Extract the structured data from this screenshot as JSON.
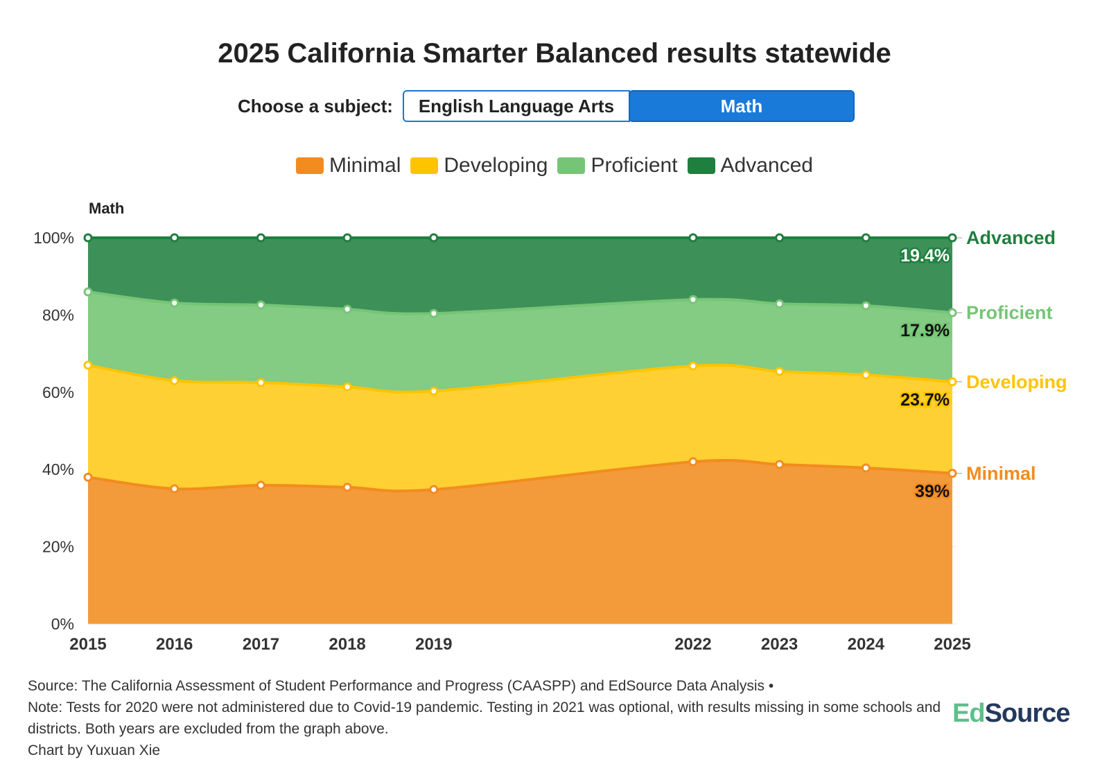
{
  "title": "2025 California Smarter Balanced results statewide",
  "chooser": {
    "label": "Choose a subject:",
    "options": [
      "English Language Arts",
      "Math"
    ],
    "selected": "Math"
  },
  "footer": {
    "source": "Source: The California Assessment of Student Performance and Progress (CAASPP) and EdSource Data Analysis •",
    "note": "Note: Tests for 2020 were not administered due to Covid-19 pandemic. Testing in 2021 was optional, with results missing in some schools and districts. Both years are excluded from the graph above.",
    "credit": "Chart by Yuxuan Xie"
  },
  "logo": {
    "part1": "Ed",
    "part2": "Source"
  },
  "chart_data": {
    "type": "area",
    "stacked": true,
    "subtitle": "Math",
    "x": [
      2015,
      2016,
      2017,
      2018,
      2019,
      2022,
      2023,
      2024,
      2025
    ],
    "x_tick_labels": [
      "2015",
      "2016",
      "2017",
      "2018",
      "2019",
      "2022",
      "2023",
      "2024",
      "2025"
    ],
    "y_ticks": [
      "0%",
      "20%",
      "40%",
      "60%",
      "80%",
      "100%"
    ],
    "ylim": [
      0,
      100
    ],
    "legend_position": "top-center",
    "series": [
      {
        "name": "Minimal",
        "color": "#f39a3b",
        "line": "#f28c1e",
        "values": [
          38.0,
          35.0,
          35.9,
          35.4,
          34.8,
          42.0,
          41.3,
          40.4,
          39.0
        ],
        "end_label": "39%"
      },
      {
        "name": "Developing",
        "color": "#ffd033",
        "line": "#ffc400",
        "values": [
          29.0,
          28.0,
          26.6,
          26.0,
          25.5,
          24.8,
          24.1,
          24.1,
          23.7
        ],
        "end_label": "23.7%"
      },
      {
        "name": "Proficient",
        "color": "#84cb84",
        "line": "#76c576",
        "values": [
          19.0,
          20.1,
          20.1,
          20.1,
          20.1,
          17.2,
          17.5,
          17.9,
          17.9
        ],
        "end_label": "17.9%"
      },
      {
        "name": "Advanced",
        "color": "#3d9158",
        "line": "#1f7f3f",
        "values": [
          14.0,
          16.9,
          17.4,
          18.5,
          19.6,
          16.0,
          17.1,
          17.6,
          19.4
        ],
        "end_label": "19.4%"
      }
    ]
  }
}
